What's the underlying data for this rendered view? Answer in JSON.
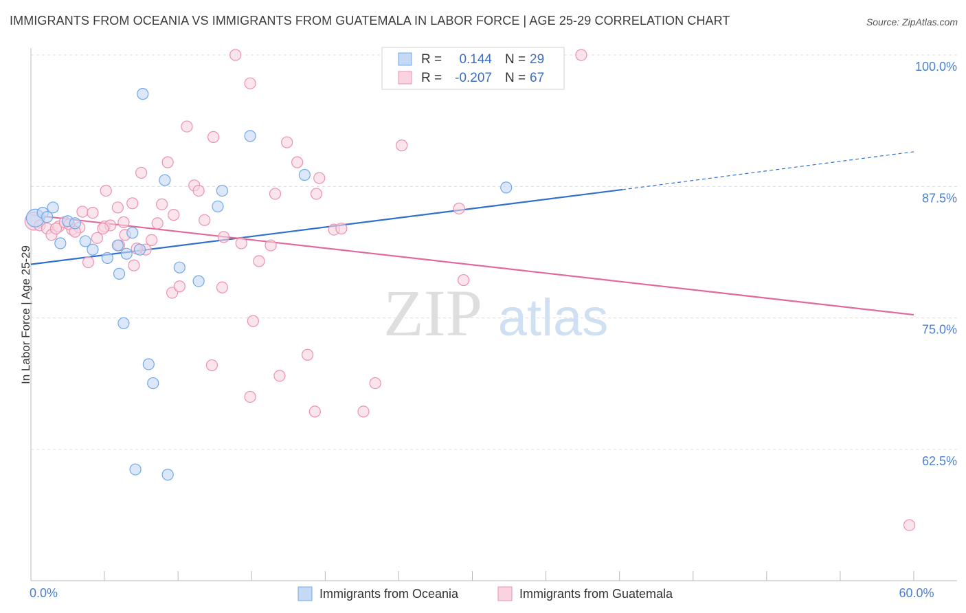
{
  "title": "IMMIGRANTS FROM OCEANIA VS IMMIGRANTS FROM GUATEMALA IN LABOR FORCE | AGE 25-29 CORRELATION CHART",
  "source": "Source: ZipAtlas.com",
  "watermark": {
    "zip": "ZIP",
    "atlas": "atlas"
  },
  "colors": {
    "blue": "#6fa8e8",
    "blue_fill": "#c5d9f5",
    "blue_line": "#2f6fd0",
    "pink": "#ee8fb0",
    "pink_fill": "#f9d3e0",
    "pink_line": "#e0689a",
    "axis_text": "#4a7fd0",
    "grid": "#dcdcdc"
  },
  "legend_top": {
    "rows": [
      {
        "r_label": "R =",
        "r_value": "0.144",
        "n_label": "N =",
        "n_value": "29"
      },
      {
        "r_label": "R =",
        "r_value": "-0.207",
        "n_label": "N =",
        "n_value": "67"
      }
    ]
  },
  "chart_data": {
    "type": "scatter",
    "title": "IMMIGRANTS FROM OCEANIA VS IMMIGRANTS FROM GUATEMALA IN LABOR FORCE | AGE 25-29 CORRELATION CHART",
    "xlabel": "",
    "ylabel": "In Labor Force | Age 25-29",
    "xlim": [
      0,
      60
    ],
    "ylim": [
      50,
      102
    ],
    "x_tick_labels": [
      {
        "value": 0,
        "label": "0.0%"
      },
      {
        "value": 60,
        "label": "60.0%"
      }
    ],
    "y_tick_labels": [
      {
        "value": 100,
        "label": "100.0%"
      },
      {
        "value": 87.5,
        "label": "87.5%"
      },
      {
        "value": 75,
        "label": "75.0%"
      },
      {
        "value": 62.5,
        "label": "62.5%"
      }
    ],
    "series": [
      {
        "name": "Immigrants from Oceania",
        "color": "blue",
        "R": 0.144,
        "N": 29,
        "trend": {
          "x0": 0,
          "y0": 80.1,
          "x1": 40.2,
          "y1": 87.2,
          "dash_to_x": 60,
          "dash_to_y": 90.8
        },
        "points": [
          [
            0.3,
            84.5,
            "large"
          ],
          [
            0.8,
            85.0
          ],
          [
            1.5,
            85.5
          ],
          [
            2.0,
            82.1
          ],
          [
            2.5,
            84.2
          ],
          [
            3.0,
            84.0
          ],
          [
            3.7,
            82.3
          ],
          [
            4.2,
            81.5
          ],
          [
            5.2,
            80.7
          ],
          [
            5.9,
            81.9
          ],
          [
            6.0,
            79.2
          ],
          [
            6.3,
            74.5
          ],
          [
            6.5,
            81.1
          ],
          [
            6.9,
            83.1
          ],
          [
            7.1,
            60.6
          ],
          [
            7.4,
            81.5
          ],
          [
            7.6,
            96.3
          ],
          [
            8.0,
            70.6
          ],
          [
            8.3,
            68.8
          ],
          [
            9.1,
            88.1
          ],
          [
            9.3,
            60.1
          ],
          [
            10.1,
            79.8
          ],
          [
            11.4,
            78.5
          ],
          [
            12.7,
            85.6
          ],
          [
            13.0,
            87.1
          ],
          [
            14.9,
            92.3
          ],
          [
            18.6,
            88.6
          ],
          [
            32.3,
            87.4
          ],
          [
            1.1,
            84.6
          ]
        ]
      },
      {
        "name": "Immigrants from Guatemala",
        "color": "pink",
        "R": -0.207,
        "N": 67,
        "trend": {
          "x0": 0,
          "y0": 84.8,
          "x1": 60,
          "y1": 75.3
        },
        "points": [
          [
            0.2,
            84.2,
            "large"
          ],
          [
            0.6,
            83.8
          ],
          [
            1.1,
            83.5
          ],
          [
            1.4,
            82.9
          ],
          [
            1.9,
            83.7
          ],
          [
            2.3,
            84.1
          ],
          [
            2.8,
            83.4
          ],
          [
            3.3,
            83.6
          ],
          [
            3.5,
            85.1
          ],
          [
            3.9,
            80.3
          ],
          [
            4.2,
            85.0
          ],
          [
            4.5,
            82.6
          ],
          [
            5.0,
            83.7
          ],
          [
            5.1,
            87.1
          ],
          [
            5.4,
            83.8
          ],
          [
            5.9,
            85.5
          ],
          [
            6.0,
            81.9
          ],
          [
            6.4,
            82.9
          ],
          [
            6.9,
            85.9
          ],
          [
            7.0,
            80.0
          ],
          [
            7.5,
            88.8
          ],
          [
            7.8,
            81.5
          ],
          [
            8.2,
            82.4
          ],
          [
            8.6,
            84.0
          ],
          [
            8.9,
            85.8
          ],
          [
            9.3,
            89.8
          ],
          [
            9.6,
            77.4
          ],
          [
            9.7,
            84.8
          ],
          [
            10.1,
            78.0
          ],
          [
            10.6,
            93.2
          ],
          [
            11.1,
            87.6
          ],
          [
            11.4,
            87.1
          ],
          [
            11.8,
            84.3
          ],
          [
            12.4,
            92.2
          ],
          [
            13.0,
            77.9
          ],
          [
            13.1,
            82.7
          ],
          [
            13.9,
            100.0
          ],
          [
            14.3,
            82.1
          ],
          [
            14.9,
            97.3
          ],
          [
            15.1,
            74.7
          ],
          [
            15.5,
            80.4
          ],
          [
            16.6,
            86.8
          ],
          [
            16.9,
            69.5
          ],
          [
            16.3,
            81.9
          ],
          [
            17.4,
            91.7
          ],
          [
            18.1,
            89.8
          ],
          [
            18.8,
            71.5
          ],
          [
            19.3,
            66.1
          ],
          [
            19.4,
            86.8
          ],
          [
            19.6,
            88.3
          ],
          [
            20.6,
            83.4
          ],
          [
            21.1,
            83.5
          ],
          [
            22.6,
            66.1
          ],
          [
            23.4,
            68.8
          ],
          [
            25.2,
            91.4
          ],
          [
            29.1,
            85.4
          ],
          [
            29.4,
            78.6
          ],
          [
            37.4,
            100.0
          ],
          [
            59.7,
            55.3
          ],
          [
            12.3,
            70.5
          ],
          [
            14.9,
            67.5
          ],
          [
            2.6,
            83.9
          ],
          [
            4.9,
            83.5
          ],
          [
            6.3,
            84.1
          ],
          [
            3.0,
            83.2
          ],
          [
            1.7,
            83.5
          ],
          [
            7.2,
            81.6
          ]
        ]
      }
    ],
    "legend": [
      "Immigrants from Oceania",
      "Immigrants from Guatemala"
    ],
    "legend_position": "bottom-center",
    "grid": true
  }
}
